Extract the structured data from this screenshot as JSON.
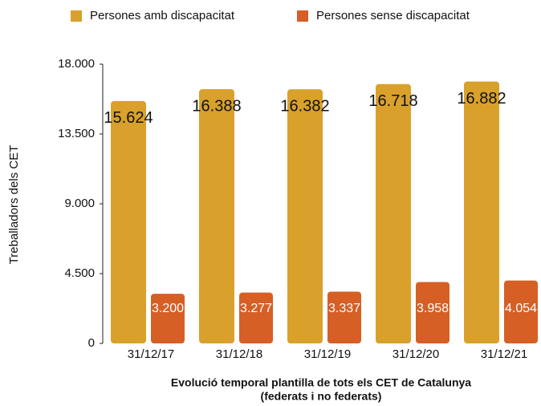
{
  "chart_data": {
    "type": "bar",
    "x_label": [
      "Evolució temporal plantilla de tots els CET de Catalunya",
      "(federats i no federats)"
    ],
    "y_label": "Treballadors dels CET",
    "categories": [
      "31/12/17",
      "31/12/18",
      "31/12/19",
      "31/12/20",
      "31/12/21"
    ],
    "series": [
      {
        "name": "Persones amb discapacitat",
        "color": "#d9a12b",
        "values": [
          15624,
          16388,
          16382,
          16718,
          16882
        ],
        "value_labels": [
          "15.624",
          "16.388",
          "16.382",
          "16.718",
          "16.882"
        ]
      },
      {
        "name": "Persones sense discapacitat",
        "color": "#d65f26",
        "values": [
          3200,
          3277,
          3337,
          3958,
          4054
        ],
        "value_labels": [
          "3.200",
          "3.277",
          "3.337",
          "3.958",
          "4.054"
        ]
      }
    ],
    "ylim": [
      0,
      18000
    ],
    "yticks": [
      0,
      {
        "value": 4500,
        "label": "4.500"
      },
      {
        "value": 9000,
        "label": "9.000"
      },
      {
        "value": 13500,
        "label": "13.500"
      },
      {
        "value": 18000,
        "label": "18.000"
      }
    ],
    "grid": false
  }
}
